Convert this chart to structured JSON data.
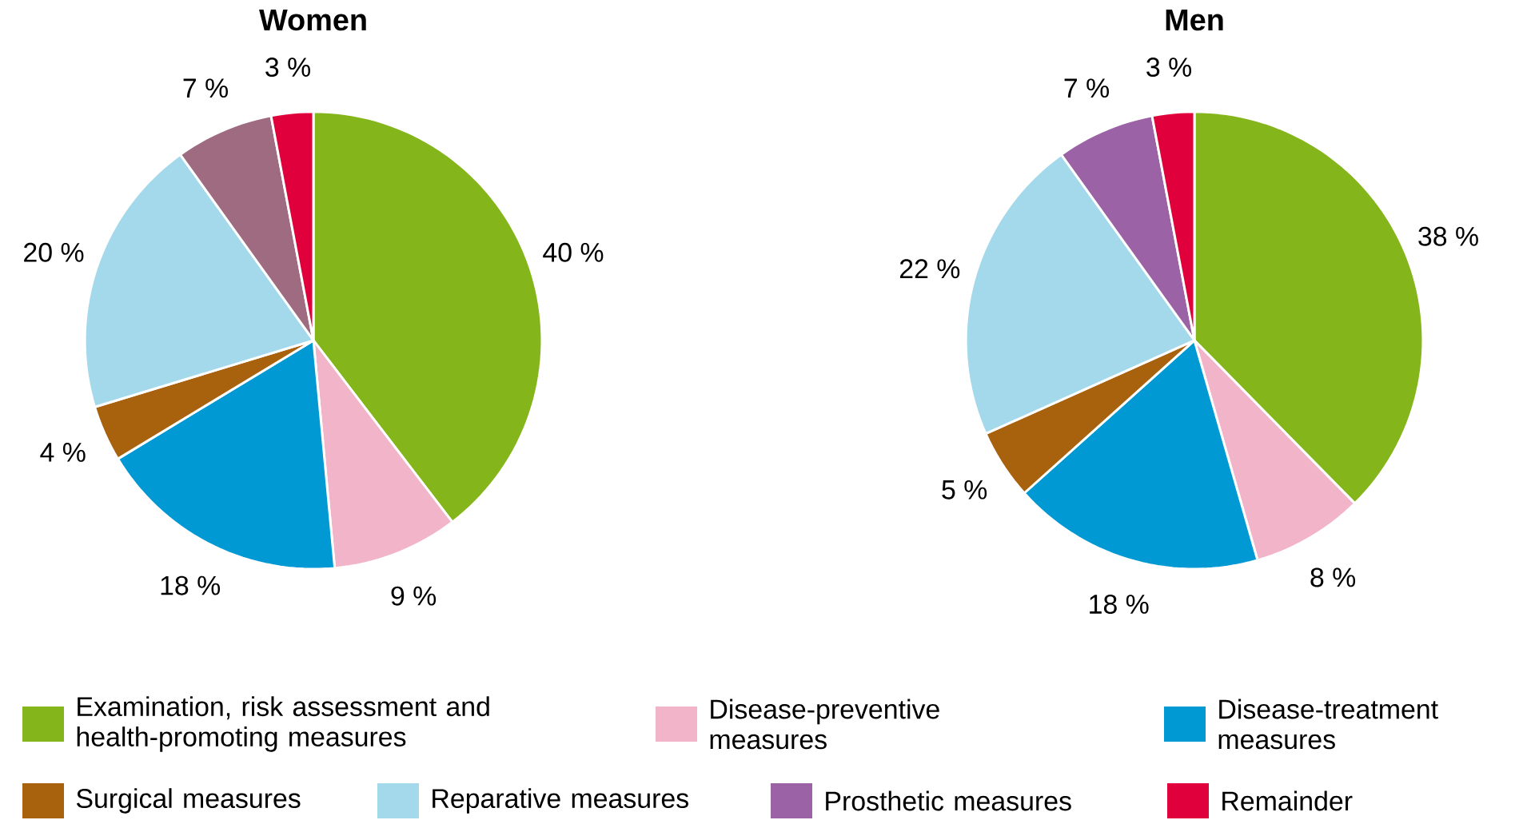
{
  "chart_data": [
    {
      "type": "pie",
      "title": "Women",
      "values": [
        40,
        9,
        18,
        4,
        20,
        7,
        3
      ],
      "value_labels": [
        "40 %",
        "9 %",
        "18 %",
        "4 %",
        "20 %",
        "7 %",
        "3 %"
      ],
      "colors": [
        "#84b51a",
        "#f2b4c9",
        "#0099d4",
        "#a8610c",
        "#a4d9ec",
        "#9e6b80",
        "#e0003c"
      ]
    },
    {
      "type": "pie",
      "title": "Men",
      "categories": [
        "Examination, risk assessment and health-promoting measures",
        "Disease-preventive measures",
        "Disease-treatment measures",
        "Surgical measures",
        "Reparative measures",
        "Prosthetic measures",
        "Remainder"
      ],
      "values": [
        38,
        8,
        18,
        5,
        22,
        7,
        3
      ],
      "value_labels": [
        "38 %",
        "8 %",
        "18 %",
        "5 %",
        "22 %",
        "7 %",
        "3 %"
      ],
      "colors": [
        "#84b51a",
        "#f2b4c9",
        "#0099d4",
        "#a8610c",
        "#a4d9ec",
        "#9b63a6",
        "#e0003c"
      ],
      "legend": "bottom"
    }
  ]
}
